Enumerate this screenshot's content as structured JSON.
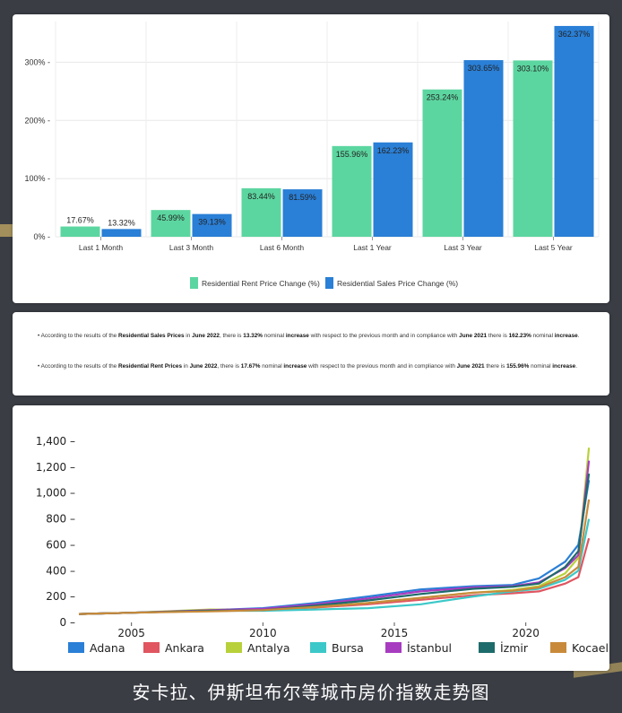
{
  "chart_data": [
    {
      "type": "bar",
      "categories": [
        "Last 1 Month",
        "Last 3 Month",
        "Last 6 Month",
        "Last 1 Year",
        "Last 3 Year",
        "Last 5 Year"
      ],
      "series": [
        {
          "name": "Residential Rent Price Change (%)",
          "values": [
            17.67,
            45.99,
            83.44,
            155.96,
            253.24,
            303.1
          ],
          "labels": [
            "17.67%",
            "45.99%",
            "83.44%",
            "155.96%",
            "253.24%",
            "303.10%"
          ],
          "color": "#5cd6a0"
        },
        {
          "name": "Residential Sales Price Change (%)",
          "values": [
            13.32,
            39.13,
            81.59,
            162.23,
            303.65,
            362.37
          ],
          "labels": [
            "13.32%",
            "39.13%",
            "81.59%",
            "162.23%",
            "303.65%",
            "362.37%"
          ],
          "color": "#2a7fd6"
        }
      ],
      "yticks": [
        0,
        100,
        200,
        300
      ],
      "ytick_labels": [
        "0% -",
        "100% -",
        "200% -",
        "300% -"
      ],
      "ylim": [
        0,
        370
      ],
      "grid": true,
      "legend": "bottom-center"
    },
    {
      "type": "line",
      "x_range": [
        2003,
        2022.5
      ],
      "ylim": [
        0,
        1400
      ],
      "yticks": [
        0,
        200,
        400,
        600,
        800,
        1000,
        1200,
        1400
      ],
      "ytick_labels": [
        "0 –",
        "200 –",
        "400 –",
        "600 –",
        "800 –",
        "1,000 –",
        "1,200 –",
        "1,400 –"
      ],
      "xticks": [
        2005,
        2010,
        2015,
        2020
      ],
      "xtick_labels": [
        "2005",
        "2010",
        "2015",
        "2020"
      ],
      "legend": "bottom",
      "series": [
        {
          "name": "Adana",
          "color": "#2a7fd6",
          "x": [
            2003,
            2005,
            2008,
            2010,
            2012,
            2014,
            2016,
            2018,
            2019.5,
            2020.5,
            2021.5,
            2022,
            2022.4
          ],
          "y": [
            65,
            75,
            95,
            110,
            150,
            200,
            255,
            280,
            290,
            340,
            470,
            600,
            1100
          ]
        },
        {
          "name": "Ankara",
          "color": "#e05560",
          "x": [
            2003,
            2005,
            2008,
            2010,
            2012,
            2014,
            2016,
            2018,
            2019.5,
            2020.5,
            2021.5,
            2022,
            2022.4
          ],
          "y": [
            65,
            75,
            90,
            95,
            115,
            140,
            175,
            210,
            225,
            240,
            300,
            350,
            650
          ]
        },
        {
          "name": "Antalya",
          "color": "#b8d13a",
          "x": [
            2003,
            2005,
            2008,
            2010,
            2012,
            2014,
            2016,
            2018,
            2019.5,
            2020.5,
            2021.5,
            2022,
            2022.4
          ],
          "y": [
            65,
            75,
            100,
            95,
            120,
            150,
            190,
            230,
            250,
            280,
            380,
            500,
            1350
          ]
        },
        {
          "name": "Bursa",
          "color": "#3cc8c8",
          "x": [
            2003,
            2005,
            2008,
            2010,
            2012,
            2014,
            2016,
            2018,
            2019.5,
            2020.5,
            2021.5,
            2022,
            2022.4
          ],
          "y": [
            65,
            75,
            90,
            90,
            100,
            110,
            140,
            200,
            240,
            260,
            330,
            400,
            800
          ]
        },
        {
          "name": "İstanbul",
          "color": "#a83cc0",
          "x": [
            2003,
            2005,
            2008,
            2010,
            2012,
            2014,
            2016,
            2018,
            2019.5,
            2020.5,
            2021.5,
            2022,
            2022.4
          ],
          "y": [
            65,
            75,
            95,
            105,
            140,
            185,
            240,
            270,
            280,
            310,
            420,
            520,
            1250
          ]
        },
        {
          "name": "İzmir",
          "color": "#1e6b6b",
          "x": [
            2003,
            2005,
            2008,
            2010,
            2012,
            2014,
            2016,
            2018,
            2019.5,
            2020.5,
            2021.5,
            2022,
            2022.4
          ],
          "y": [
            65,
            75,
            90,
            95,
            130,
            170,
            220,
            260,
            275,
            300,
            430,
            550,
            1150
          ]
        },
        {
          "name": "Kocaeli",
          "color": "#c88a3a",
          "x": [
            2003,
            2005,
            2008,
            2010,
            2012,
            2014,
            2016,
            2018,
            2019.5,
            2020.5,
            2021.5,
            2022,
            2022.4
          ],
          "y": [
            65,
            75,
            85,
            95,
            120,
            150,
            190,
            230,
            245,
            270,
            350,
            430,
            950
          ]
        }
      ]
    }
  ],
  "notes": [
    {
      "t1": "• According to the results of the ",
      "b1": "Residential Sales Prices",
      "t2": " in ",
      "b2": "June 2022",
      "t3": ", there is ",
      "b3": "13.32%",
      "t4": " nominal ",
      "b4": "increase",
      "t5": " with respect to the previous month and in compliance with ",
      "b5": "June 2021",
      "t6": " there is ",
      "b6": "162.23%",
      "t7": " nominal ",
      "b7": "increase",
      "t8": "."
    },
    {
      "t1": "• According to the results of the ",
      "b1": "Residential Rent Prices",
      "t2": " in ",
      "b2": "June 2022",
      "t3": ", there is ",
      "b3": "17.67%",
      "t4": " nominal ",
      "b4": "increase",
      "t5": " with respect to the previous month and in compliance with ",
      "b5": "June 2021",
      "t6": " there is ",
      "b6": "155.96%",
      "t7": " nominal ",
      "b7": "increase",
      "t8": "."
    }
  ],
  "caption": "安卡拉、伊斯坦布尔等城市房价指数走势图"
}
